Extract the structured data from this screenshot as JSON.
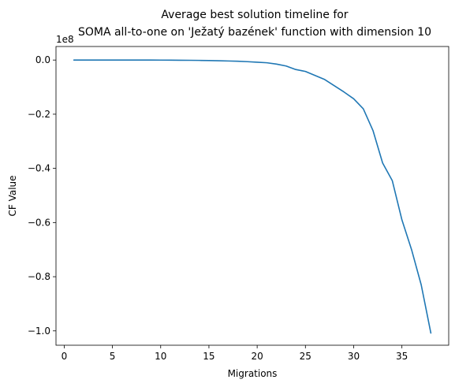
{
  "chart_data": {
    "type": "line",
    "title_line1": "Average best solution timeline for",
    "title_line2": "SOMA all-to-one on 'Ježatý bazének' function with dimension 10",
    "xlabel": "Migrations",
    "ylabel": "CF Value",
    "y_offset_label": "1e8",
    "xlim": [
      -0.85,
      39.85
    ],
    "ylim": [
      -1.053,
      0.05
    ],
    "x_ticks": [
      0,
      5,
      10,
      15,
      20,
      25,
      30,
      35
    ],
    "x_tick_labels": [
      "0",
      "5",
      "10",
      "15",
      "20",
      "25",
      "30",
      "35"
    ],
    "y_ticks": [
      0.0,
      -0.2,
      -0.4,
      -0.6,
      -0.8,
      -1.0
    ],
    "y_tick_labels": [
      "0.0",
      "−0.2",
      "−0.4",
      "−0.6",
      "−0.8",
      "−1.0"
    ],
    "grid": false,
    "series": [
      {
        "color": "#1f77b4",
        "x": [
          1,
          2,
          3,
          4,
          5,
          6,
          7,
          8,
          9,
          10,
          11,
          12,
          13,
          14,
          15,
          16,
          17,
          18,
          19,
          20,
          21,
          22,
          23,
          24,
          25,
          26,
          27,
          28,
          29,
          30,
          31,
          32,
          33,
          34,
          35,
          36,
          37,
          38
        ],
        "y": [
          0,
          0,
          0,
          0,
          0,
          0,
          0,
          0,
          0,
          -0.0002,
          -0.0004,
          -0.0006,
          -0.0009,
          -0.0013,
          -0.0018,
          -0.0025,
          -0.0035,
          -0.0045,
          -0.006,
          -0.008,
          -0.01,
          -0.015,
          -0.022,
          -0.035,
          -0.042,
          -0.057,
          -0.072,
          -0.095,
          -0.118,
          -0.143,
          -0.18,
          -0.26,
          -0.38,
          -0.445,
          -0.59,
          -0.7,
          -0.83,
          -1.008
        ]
      }
    ]
  }
}
